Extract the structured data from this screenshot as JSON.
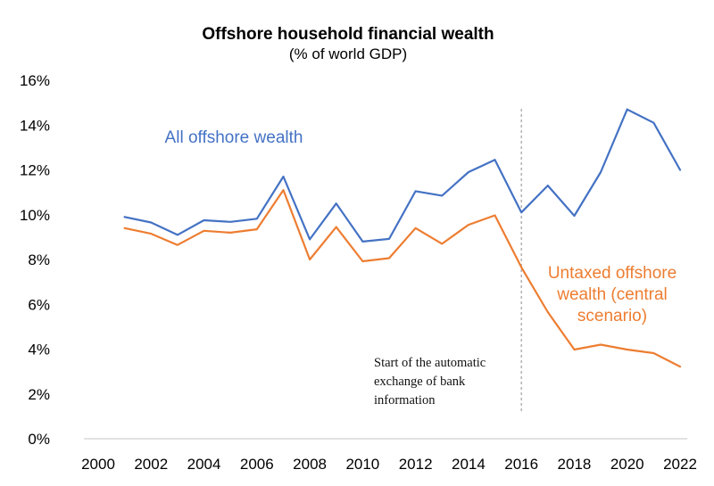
{
  "chart_data": {
    "type": "line",
    "title": "Offshore household financial wealth",
    "subtitle": "(% of world GDP)",
    "xlabel": "",
    "ylabel": "",
    "xlim": [
      2000,
      2022
    ],
    "ylim": [
      0,
      16
    ],
    "x_ticks": [
      "2000",
      "2002",
      "2004",
      "2006",
      "2008",
      "2010",
      "2012",
      "2014",
      "2016",
      "2018",
      "2020",
      "2022"
    ],
    "y_ticks": [
      "0%",
      "2%",
      "4%",
      "6%",
      "8%",
      "10%",
      "12%",
      "14%",
      "16%"
    ],
    "grid": false,
    "x": [
      2001,
      2002,
      2003,
      2004,
      2005,
      2006,
      2007,
      2008,
      2009,
      2010,
      2011,
      2012,
      2013,
      2014,
      2015,
      2016,
      2017,
      2018,
      2019,
      2020,
      2021,
      2022
    ],
    "series": [
      {
        "name": "All offshore wealth",
        "color": "#4472C4",
        "values": [
          9.9,
          9.65,
          9.1,
          9.75,
          9.68,
          9.82,
          11.7,
          8.9,
          10.5,
          8.8,
          8.92,
          11.05,
          10.85,
          11.9,
          12.45,
          10.1,
          11.3,
          9.95,
          11.9,
          14.7,
          14.1,
          12.0
        ]
      },
      {
        "name": "Untaxed offshore wealth (central scenario)",
        "color": "#ED7D31",
        "values": [
          9.4,
          9.15,
          8.65,
          9.28,
          9.2,
          9.35,
          11.1,
          8.0,
          9.45,
          7.92,
          8.06,
          9.4,
          8.7,
          9.55,
          9.97,
          7.65,
          5.65,
          3.98,
          4.2,
          3.98,
          3.82,
          3.22
        ]
      }
    ],
    "series_labels": [
      {
        "lines": [
          "All offshore wealth"
        ],
        "color": "#4472C4"
      },
      {
        "lines": [
          "Untaxed offshore",
          "wealth (central",
          "scenario)"
        ],
        "color": "#ED7D31"
      }
    ],
    "annotation": {
      "x": 2016,
      "line_color": "#A6A6A6",
      "lines": [
        "Start of the automatic",
        "exchange of bank",
        "information"
      ]
    }
  }
}
